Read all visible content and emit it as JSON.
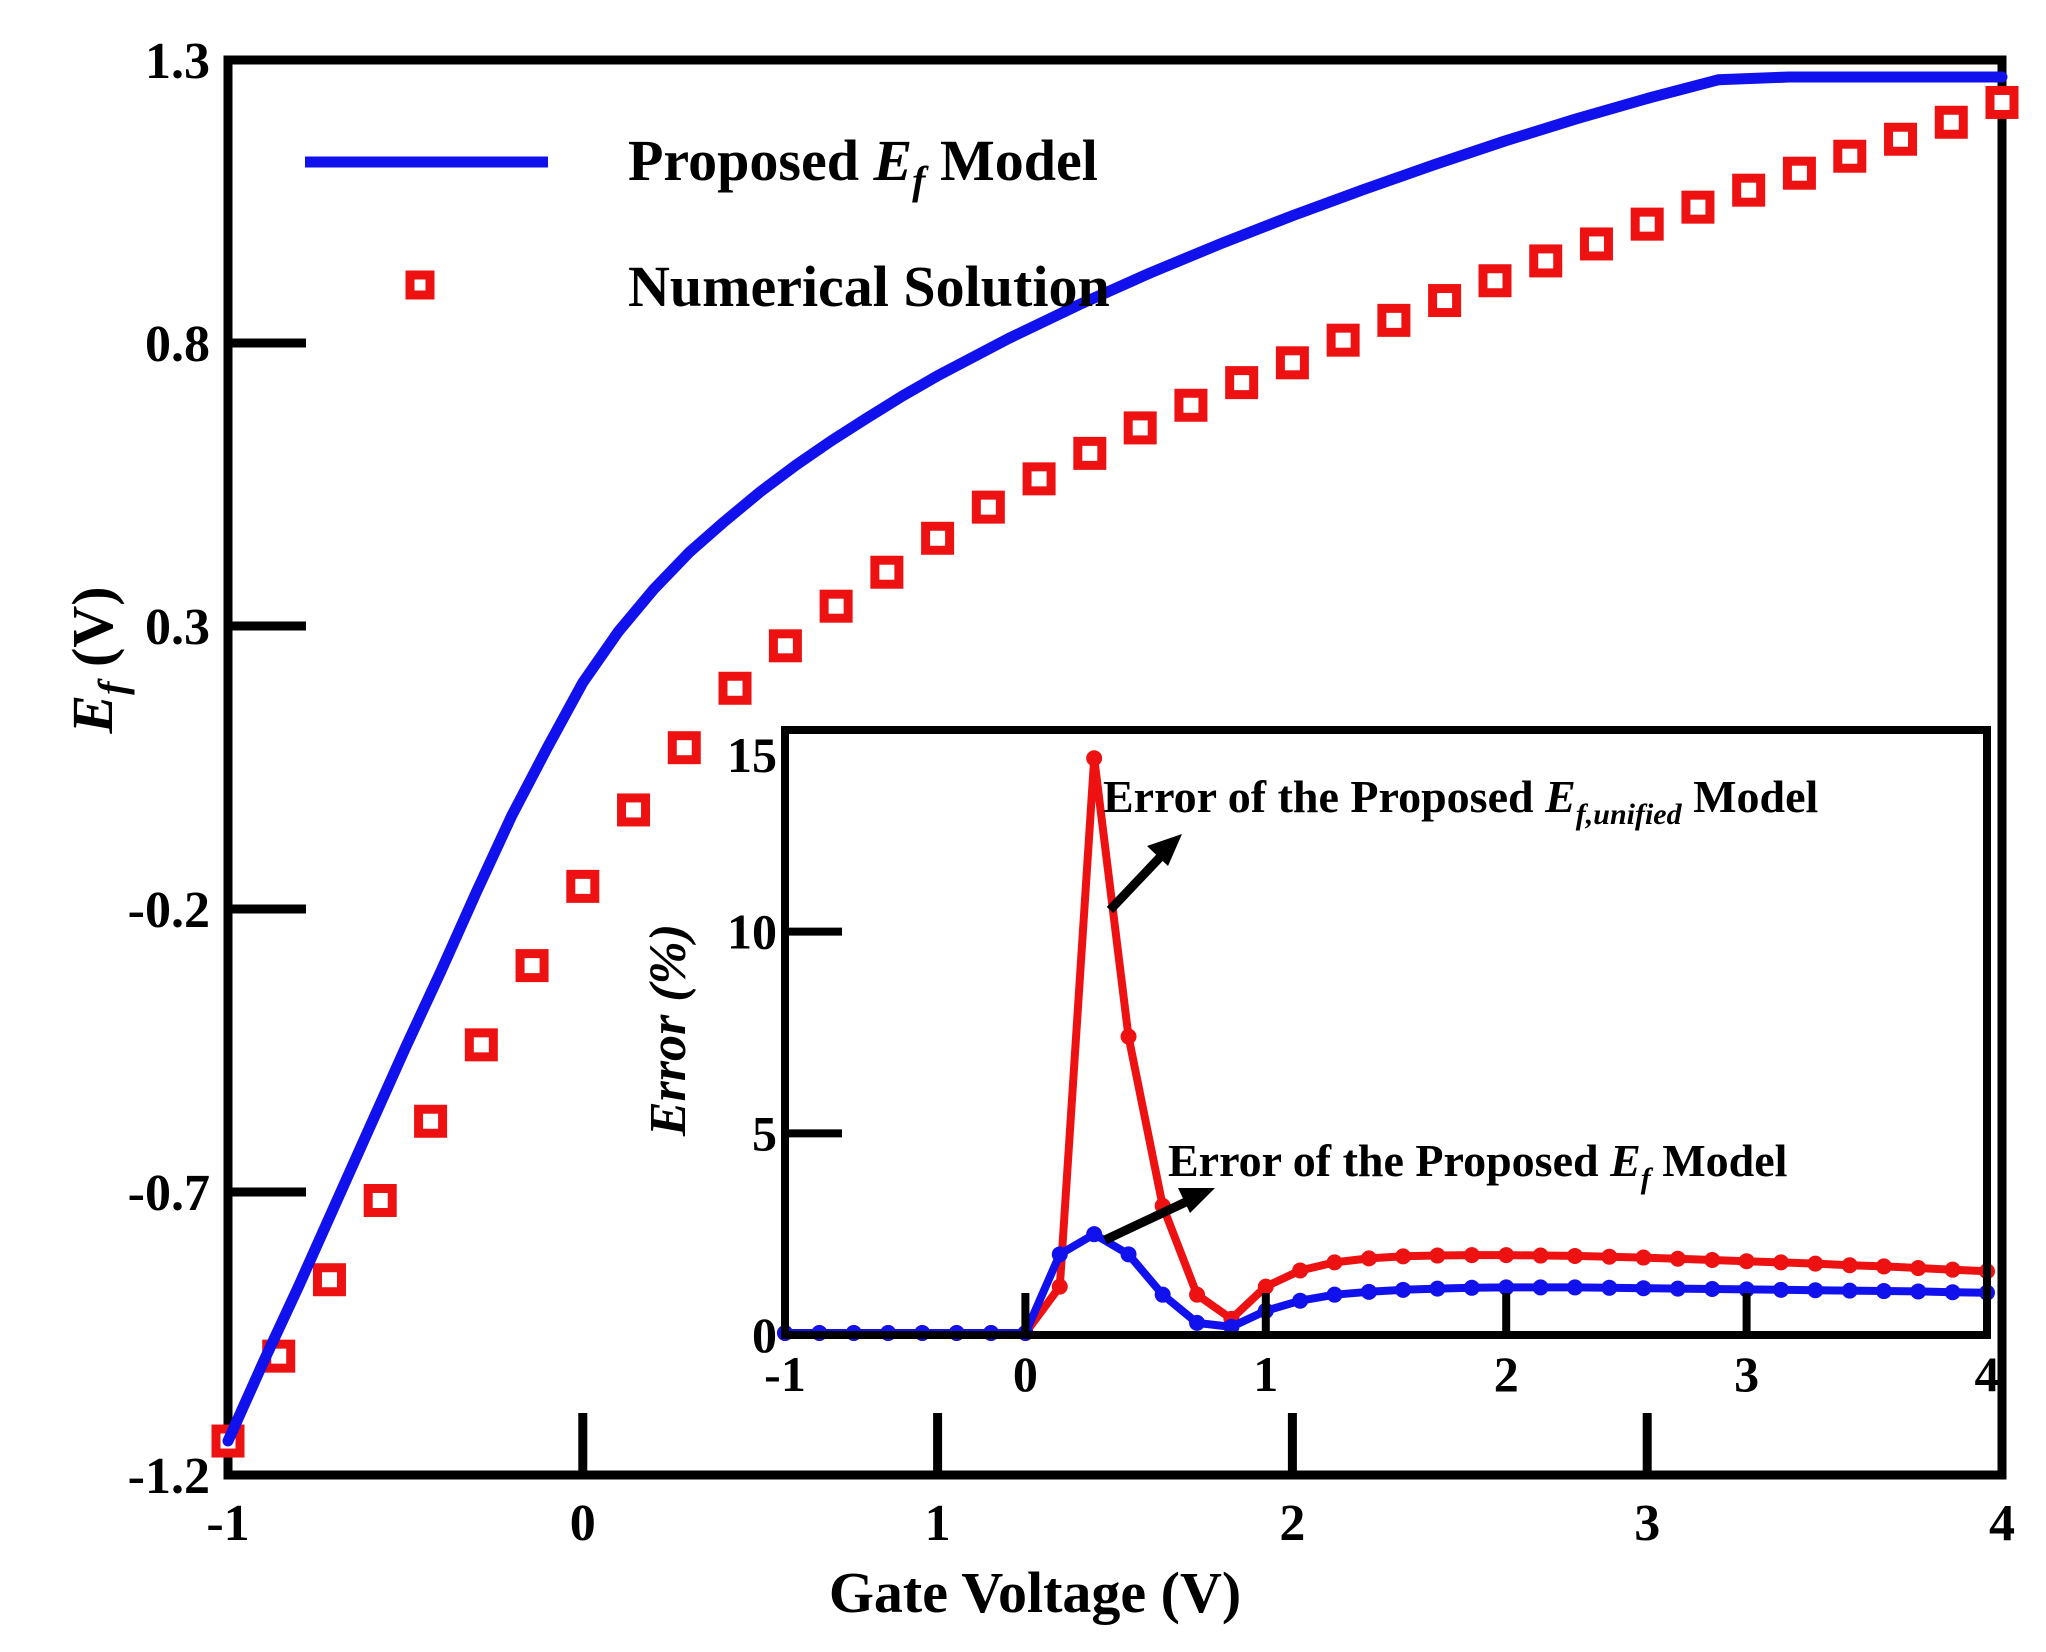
{
  "chart_data": [
    {
      "type": "line",
      "role": "main",
      "xlabel": "Gate Voltage (V)",
      "ylabel_main": "E",
      "ylabel_sub": "f",
      "ylabel_unit": " (V)",
      "xlim": [
        -1,
        4
      ],
      "ylim": [
        -1.2,
        1.3
      ],
      "xticks": [
        -1,
        0,
        1,
        2,
        3,
        4
      ],
      "xtick_labels": [
        "-1",
        "0",
        "1",
        "2",
        "3",
        "4"
      ],
      "yticks": [
        -1.2,
        -0.7,
        -0.2,
        0.3,
        0.8,
        1.3
      ],
      "ytick_labels": [
        "-1.2",
        "-0.7",
        "-0.2",
        "0.3",
        "0.8",
        "1.3"
      ],
      "legend": {
        "placement": "top-left",
        "entries": [
          {
            "pre": "Proposed ",
            "italic": "E",
            "sub": "f",
            "post": " Model",
            "style": "line"
          },
          {
            "pre": "Numerical Solution",
            "italic": "",
            "sub": "",
            "post": "",
            "style": "square-marker"
          }
        ]
      },
      "series": [
        {
          "name": "Proposed Ef Model",
          "color": "#1111ee",
          "style": "line",
          "x": [
            -1.0,
            -0.9,
            -0.8,
            -0.7,
            -0.6,
            -0.5,
            -0.4,
            -0.3,
            -0.2,
            -0.1,
            0.0,
            0.1,
            0.2,
            0.3,
            0.4,
            0.5,
            0.6,
            0.7,
            0.8,
            0.9,
            1.0,
            1.2,
            1.4,
            1.6,
            1.8,
            2.0,
            2.2,
            2.4,
            2.6,
            2.8,
            3.0,
            3.2,
            3.4,
            3.6,
            3.8,
            4.0
          ],
          "y": [
            -1.14,
            -1.0,
            -0.865,
            -0.725,
            -0.585,
            -0.445,
            -0.31,
            -0.17,
            -0.035,
            0.085,
            0.2,
            0.29,
            0.365,
            0.43,
            0.485,
            0.537,
            0.584,
            0.627,
            0.667,
            0.706,
            0.742,
            0.808,
            0.868,
            0.924,
            0.976,
            1.025,
            1.071,
            1.115,
            1.157,
            1.196,
            1.232,
            1.265,
            1.297,
            1.325,
            1.35,
            1.27
          ]
        },
        {
          "name": "Numerical Solution",
          "color": "#ee1111",
          "style": "marker",
          "x": [
            -1.0,
            -0.857,
            -0.714,
            -0.571,
            -0.429,
            -0.286,
            -0.143,
            0.0,
            0.143,
            0.286,
            0.429,
            0.571,
            0.714,
            0.857,
            1.0,
            1.143,
            1.286,
            1.429,
            1.571,
            1.714,
            1.857,
            2.0,
            2.143,
            2.286,
            2.429,
            2.571,
            2.714,
            2.857,
            3.0,
            3.143,
            3.286,
            3.429,
            3.571,
            3.714,
            3.857,
            4.0
          ],
          "y": [
            -1.14,
            -0.99,
            -0.855,
            -0.715,
            -0.575,
            -0.44,
            -0.3,
            -0.16,
            -0.025,
            0.085,
            0.19,
            0.265,
            0.335,
            0.395,
            0.455,
            0.51,
            0.56,
            0.605,
            0.65,
            0.69,
            0.73,
            0.765,
            0.805,
            0.84,
            0.875,
            0.91,
            0.945,
            0.975,
            1.01,
            1.04,
            1.07,
            1.1,
            1.13,
            1.16,
            1.19,
            1.225
          ]
        }
      ]
    },
    {
      "type": "line",
      "role": "inset",
      "ylabel": "Error (%)",
      "xlim": [
        -1,
        4
      ],
      "ylim": [
        0,
        15
      ],
      "xticks": [
        -1,
        0,
        1,
        2,
        3,
        4
      ],
      "xtick_labels": [
        "-1",
        "0",
        "1",
        "2",
        "3",
        "4"
      ],
      "yticks": [
        0,
        5,
        10,
        15
      ],
      "ytick_labels": [
        "0",
        "5",
        "10",
        "15"
      ],
      "annotations": [
        {
          "pre": "Error of the Proposed ",
          "italic": "E",
          "sub": "f,unified",
          "post": " Model",
          "arrow_to_series": "Error of the Proposed Ef,unified Model"
        },
        {
          "pre": "Error of the Proposed ",
          "italic": "E",
          "sub": "f",
          "post": " Model",
          "arrow_to_series": "Error of the Proposed Ef Model"
        }
      ],
      "series": [
        {
          "name": "Error of the Proposed Ef,unified Model",
          "color": "#ee1111",
          "style": "line-marker",
          "x": [
            -1.0,
            -0.857,
            -0.714,
            -0.571,
            -0.429,
            -0.286,
            -0.143,
            0.0,
            0.143,
            0.286,
            0.429,
            0.571,
            0.714,
            0.857,
            1.0,
            1.143,
            1.286,
            1.429,
            1.571,
            1.714,
            1.857,
            2.0,
            2.143,
            2.286,
            2.429,
            2.571,
            2.714,
            2.857,
            3.0,
            3.143,
            3.286,
            3.429,
            3.571,
            3.714,
            3.857,
            4.0
          ],
          "y": [
            0.05,
            0.05,
            0.05,
            0.05,
            0.05,
            0.05,
            0.05,
            0.05,
            1.2,
            14.3,
            7.4,
            3.2,
            1.0,
            0.4,
            1.2,
            1.6,
            1.8,
            1.9,
            1.95,
            1.97,
            1.98,
            1.98,
            1.97,
            1.96,
            1.94,
            1.92,
            1.89,
            1.86,
            1.83,
            1.8,
            1.77,
            1.73,
            1.7,
            1.66,
            1.62,
            1.58
          ]
        },
        {
          "name": "Error of the Proposed Ef Model",
          "color": "#1111ee",
          "style": "line-marker",
          "x": [
            -1.0,
            -0.857,
            -0.714,
            -0.571,
            -0.429,
            -0.286,
            -0.143,
            0.0,
            0.143,
            0.286,
            0.429,
            0.571,
            0.714,
            0.857,
            1.0,
            1.143,
            1.286,
            1.429,
            1.571,
            1.714,
            1.857,
            2.0,
            2.143,
            2.286,
            2.429,
            2.571,
            2.714,
            2.857,
            3.0,
            3.143,
            3.286,
            3.429,
            3.571,
            3.714,
            3.857,
            4.0
          ],
          "y": [
            0.05,
            0.05,
            0.05,
            0.05,
            0.05,
            0.05,
            0.05,
            0.05,
            2.0,
            2.5,
            2.0,
            1.0,
            0.3,
            0.2,
            0.6,
            0.85,
            1.0,
            1.07,
            1.12,
            1.15,
            1.17,
            1.18,
            1.18,
            1.18,
            1.17,
            1.16,
            1.15,
            1.14,
            1.13,
            1.12,
            1.11,
            1.1,
            1.09,
            1.08,
            1.06,
            1.05
          ]
        }
      ]
    }
  ]
}
